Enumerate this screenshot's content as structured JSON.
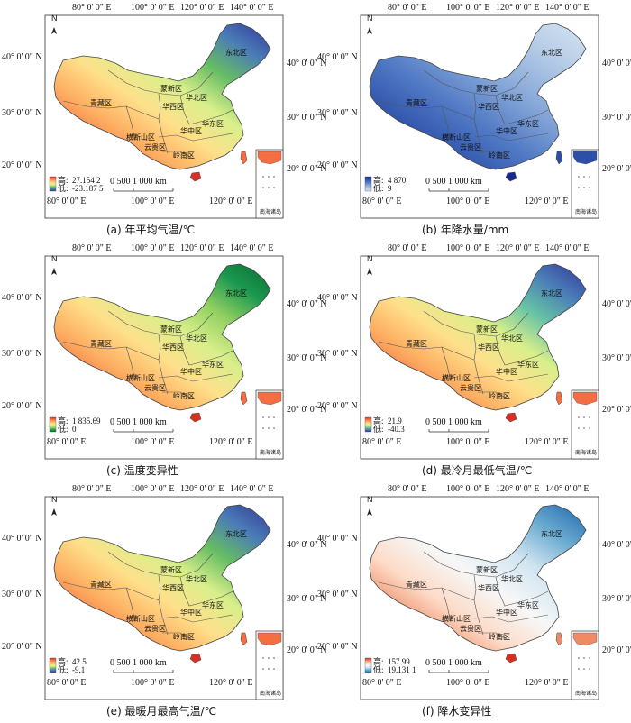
{
  "coords": {
    "top_lon": [
      "80° 0' 0\" E",
      "100° 0' 0\" E",
      "120° 0' 0\" E",
      "140° 0' 0\" E"
    ],
    "bottom_lon": [
      "80° 0' 0\" E",
      "100° 0' 0\" E",
      "120° 0' 0\" E"
    ],
    "left_lat": [
      "40° 0' 0\" N",
      "30° 0' 0\" N",
      "20° 0' 0\" N"
    ],
    "right_lat": [
      "40° 0' 0\" N",
      "30° 0' 0\" N",
      "20° 0' 0\" N"
    ]
  },
  "north_label": "N",
  "scale_label": "0   500   1 000 km",
  "inset_label": "南海诸岛",
  "regions": {
    "northeast": "东北区",
    "mengxin": "蒙新区",
    "huabei": "华北区",
    "qingzang": "青藏区",
    "huaxi": "华西区",
    "huadong": "华东区",
    "hengduan": "横断山区",
    "huazhong": "华中区",
    "yungui": "云贵区",
    "lingnan": "岭南区"
  },
  "panels": [
    {
      "id": "a",
      "caption": "(a)  年平均气温/℃",
      "legend_high_label": "高:",
      "legend_high": "27.154 2",
      "legend_low_label": "低:",
      "legend_low": "-23.187 5",
      "colors": [
        "#d73027",
        "#f46d43",
        "#fdae61",
        "#fee08b",
        "#d9ef8b",
        "#66bd63",
        "#4a7bb7",
        "#313695"
      ]
    },
    {
      "id": "b",
      "caption": "(b)  年降水量/mm",
      "legend_high_label": "高:",
      "legend_high": "4 870",
      "legend_low_label": "低:",
      "legend_low": "9",
      "colors": [
        "#1a2a8c",
        "#2c4fa8",
        "#4f78c4",
        "#86a7d8",
        "#b4cbe6",
        "#d7e4f2"
      ]
    },
    {
      "id": "c",
      "caption": "(c)  温度变异性",
      "legend_high_label": "高:",
      "legend_high": "1 835.69",
      "legend_low_label": "低:",
      "legend_low": "0",
      "colors": [
        "#d7301f",
        "#f46d43",
        "#fdae61",
        "#fee08b",
        "#d9ef8b",
        "#91cf60",
        "#1a9850",
        "#0a6b2e"
      ]
    },
    {
      "id": "d",
      "caption": "(d)  最冷月最低气温/℃",
      "legend_high_label": "高:",
      "legend_high": "21.9",
      "legend_low_label": "低:",
      "legend_low": "-40.3",
      "colors": [
        "#d73027",
        "#f46d43",
        "#fdae61",
        "#fee08b",
        "#d9ef8b",
        "#66c2a5",
        "#4a7bb7",
        "#313695"
      ]
    },
    {
      "id": "e",
      "caption": "(e)  最暖月最高气温/℃",
      "legend_high_label": "高:",
      "legend_high": "42.5",
      "legend_low_label": "低:",
      "legend_low": "-9.1",
      "colors": [
        "#d73027",
        "#f46d43",
        "#fdae61",
        "#fee08b",
        "#d9ef8b",
        "#66bd63",
        "#4a7bb7",
        "#313695"
      ]
    },
    {
      "id": "f",
      "caption": "(f)  降水变异性",
      "legend_high_label": "高:",
      "legend_high": "157.99",
      "legend_low_label": "低:",
      "legend_low": "19.131 1",
      "colors": [
        "#d7301f",
        "#ef8a62",
        "#fddbc7",
        "#f7f7f7",
        "#d1e5f0",
        "#67a9cf",
        "#2166ac"
      ]
    }
  ]
}
